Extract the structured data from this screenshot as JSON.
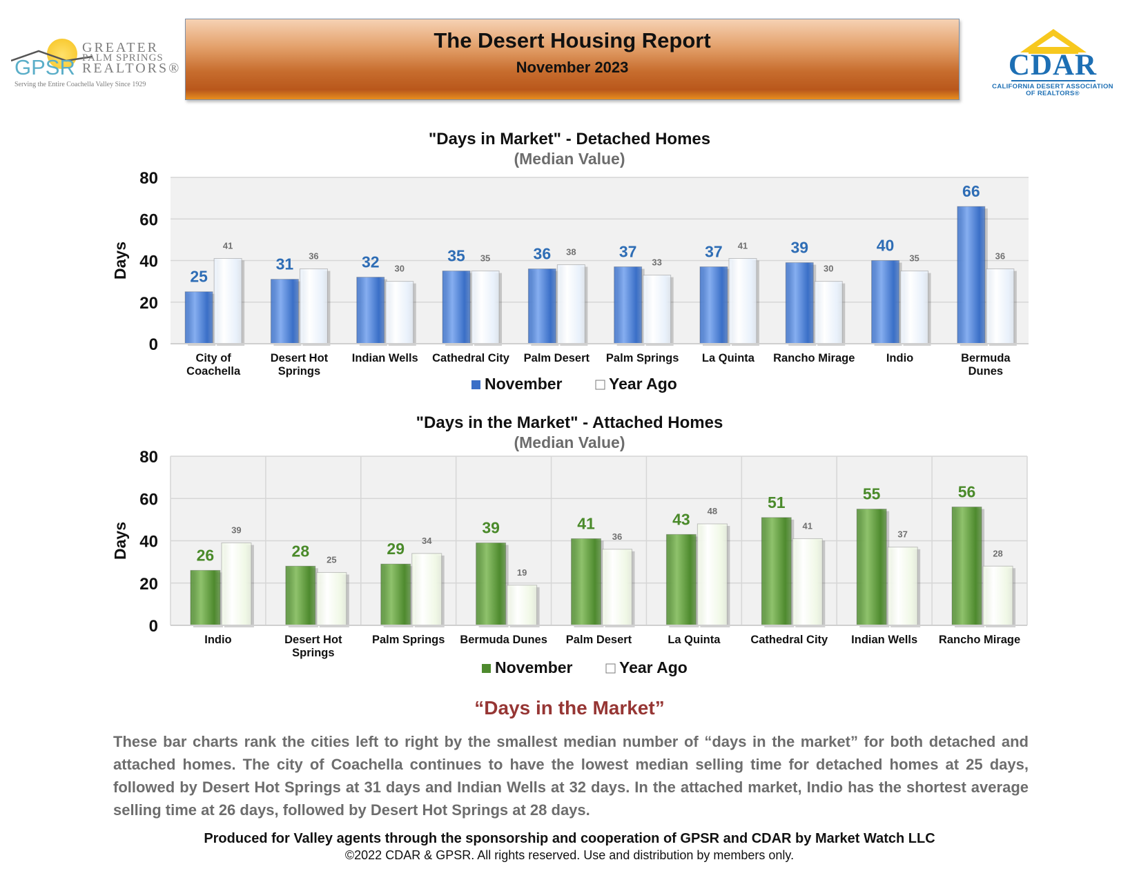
{
  "header": {
    "title": "The Desert Housing Report",
    "subtitle": "November 2023",
    "gpsr_logo": {
      "abbr": "GPSR",
      "name_line1": "GREATER",
      "name_line2": "PALM SPRINGS",
      "name_line3": "REALTORS®",
      "tagline": "Serving the Entire Coachella Valley Since 1929"
    },
    "cdar_logo": {
      "name": "CDAR",
      "sub_line1": "CALIFORNIA DESERT ASSOCIATION",
      "sub_line2": "OF REALTORS®"
    }
  },
  "colors": {
    "detached_current": "#3a6fc7",
    "detached_prior": "#e9f1fb",
    "attached_current": "#4e8a2e",
    "attached_prior": "#f0f8e6",
    "detached_label": "#2e6db5",
    "attached_label": "#4a8a2a",
    "prior_label": "#707070"
  },
  "chart_data": [
    {
      "type": "bar",
      "title": "\"Days in Market\" - Detached Homes",
      "subtitle": "(Median Value)",
      "ylabel": "Days",
      "xlabel": "",
      "ylim": [
        0,
        80
      ],
      "yticks": [
        "0",
        "20",
        "40",
        "60",
        "80"
      ],
      "grid": true,
      "legend_position": "bottom",
      "categories": [
        [
          "City of",
          "Coachella"
        ],
        [
          "Desert Hot",
          "Springs"
        ],
        [
          "Indian Wells"
        ],
        [
          "Cathedral City"
        ],
        [
          "Palm Desert"
        ],
        [
          "Palm Springs"
        ],
        [
          "La Quinta"
        ],
        [
          "Rancho Mirage"
        ],
        [
          "Indio"
        ],
        [
          "Bermuda",
          "Dunes"
        ]
      ],
      "series": [
        {
          "name": "November",
          "values": [
            25,
            31,
            32,
            35,
            36,
            37,
            37,
            39,
            40,
            66
          ]
        },
        {
          "name": "Year Ago",
          "values": [
            41,
            36,
            30,
            35,
            38,
            33,
            41,
            30,
            35,
            36
          ]
        }
      ]
    },
    {
      "type": "bar",
      "title": "\"Days in the Market\" - Attached Homes",
      "subtitle": "(Median Value)",
      "ylabel": "Days",
      "xlabel": "",
      "ylim": [
        0,
        80
      ],
      "yticks": [
        "0",
        "20",
        "40",
        "60",
        "80"
      ],
      "grid": true,
      "legend_position": "bottom",
      "categories": [
        [
          "Indio"
        ],
        [
          "Desert Hot",
          "Springs"
        ],
        [
          "Palm Springs"
        ],
        [
          "Bermuda Dunes"
        ],
        [
          "Palm Desert"
        ],
        [
          "La Quinta"
        ],
        [
          "Cathedral City"
        ],
        [
          "Indian Wells"
        ],
        [
          "Rancho Mirage"
        ]
      ],
      "series": [
        {
          "name": "November",
          "values": [
            26,
            28,
            29,
            39,
            41,
            43,
            51,
            55,
            56
          ]
        },
        {
          "name": "Year Ago",
          "values": [
            39,
            25,
            34,
            19,
            36,
            48,
            41,
            37,
            28
          ]
        }
      ]
    }
  ],
  "commentary": {
    "heading": "“Days in the Market”",
    "paragraph": "These bar charts rank the cities left to right by the smallest median number of “days in the market” for both detached and attached homes. The city of Coachella continues to have the lowest median selling time for detached homes at 25 days, followed by Desert Hot Springs at 31 days and Indian Wells at 32 days. In the attached market, Indio has the shortest average selling time at 26 days, followed by Desert Hot Springs at 28 days."
  },
  "footer": {
    "produced": "Produced for Valley agents through the sponsorship and cooperation of GPSR and CDAR by Market Watch LLC",
    "copyright": "©2022 CDAR & GPSR.  All rights reserved.  Use and distribution by members only."
  }
}
